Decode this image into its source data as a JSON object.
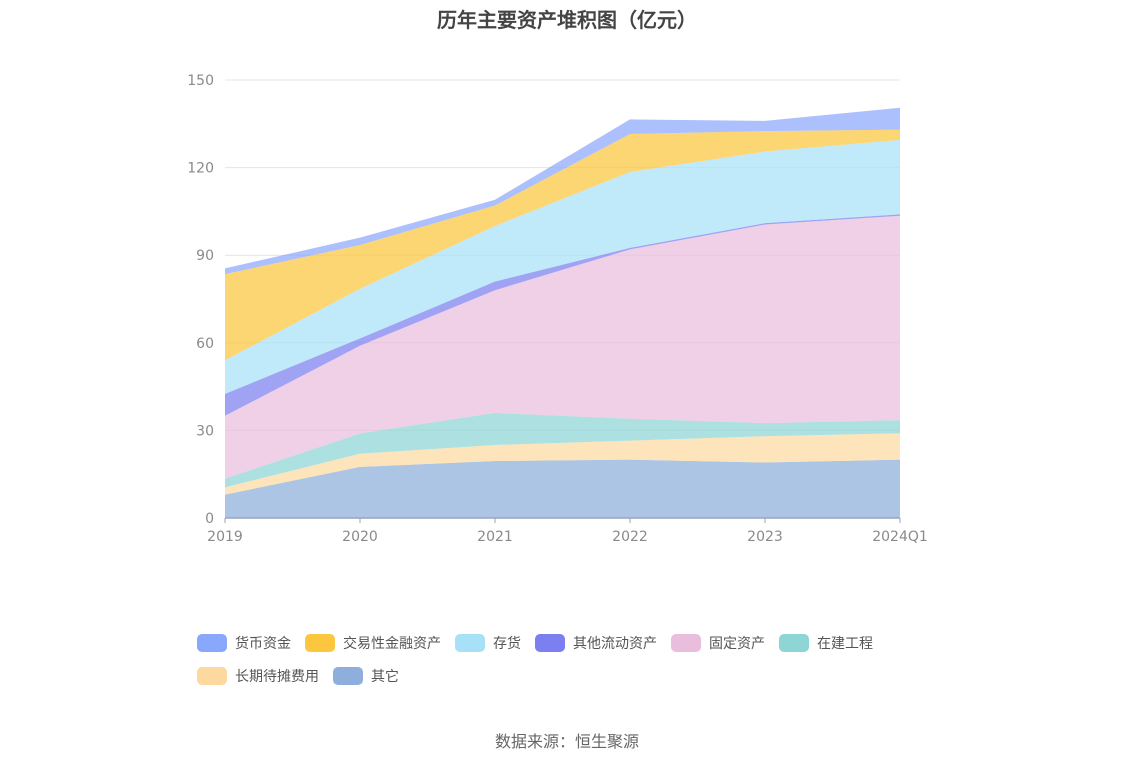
{
  "chart_data": {
    "type": "area",
    "stacked": true,
    "title": "历年主要资产堆积图（亿元）",
    "categories": [
      "2019",
      "2020",
      "2021",
      "2022",
      "2023",
      "2024Q1"
    ],
    "ylim": [
      0,
      150
    ],
    "yticks": [
      0,
      30,
      60,
      90,
      120,
      150
    ],
    "grid": true,
    "legend_position": "bottom",
    "series": [
      {
        "name": "其它",
        "color": "#8eaedb",
        "values": [
          8,
          17.5,
          19.5,
          20,
          19,
          20
        ]
      },
      {
        "name": "长期待摊费用",
        "color": "#fdd9a0",
        "values": [
          2.5,
          4.5,
          5.5,
          6.5,
          9,
          9
        ]
      },
      {
        "name": "在建工程",
        "color": "#8ed6d6",
        "values": [
          3,
          7,
          11,
          7.5,
          4.5,
          4.5
        ]
      },
      {
        "name": "固定资产",
        "color": "#e9bedc",
        "values": [
          21.5,
          30,
          42,
          58,
          68,
          70
        ]
      },
      {
        "name": "其他流动资产",
        "color": "#7b7ff0",
        "values": [
          7.5,
          2.5,
          3,
          0.5,
          0.5,
          0.5
        ]
      },
      {
        "name": "存货",
        "color": "#a8e0f8",
        "values": [
          11.5,
          17,
          19,
          26,
          24.5,
          25.5
        ]
      },
      {
        "name": "交易性金融资产",
        "color": "#fcc63f",
        "values": [
          29.5,
          15,
          7,
          13,
          7,
          3.5
        ]
      },
      {
        "name": "货币资金",
        "color": "#8aa8fb",
        "values": [
          2,
          2.5,
          2,
          5,
          3.5,
          7.5
        ]
      }
    ]
  },
  "legend_items": [
    {
      "name": "货币资金",
      "color": "#8aa8fb"
    },
    {
      "name": "交易性金融资产",
      "color": "#fcc63f"
    },
    {
      "name": "存货",
      "color": "#a8e0f8"
    },
    {
      "name": "其他流动资产",
      "color": "#7b7ff0"
    },
    {
      "name": "固定资产",
      "color": "#e9bedc"
    },
    {
      "name": "在建工程",
      "color": "#8ed6d6"
    },
    {
      "name": "长期待摊费用",
      "color": "#fdd9a0"
    },
    {
      "name": "其它",
      "color": "#8eaedb"
    }
  ],
  "source_note": "数据来源：恒生聚源"
}
